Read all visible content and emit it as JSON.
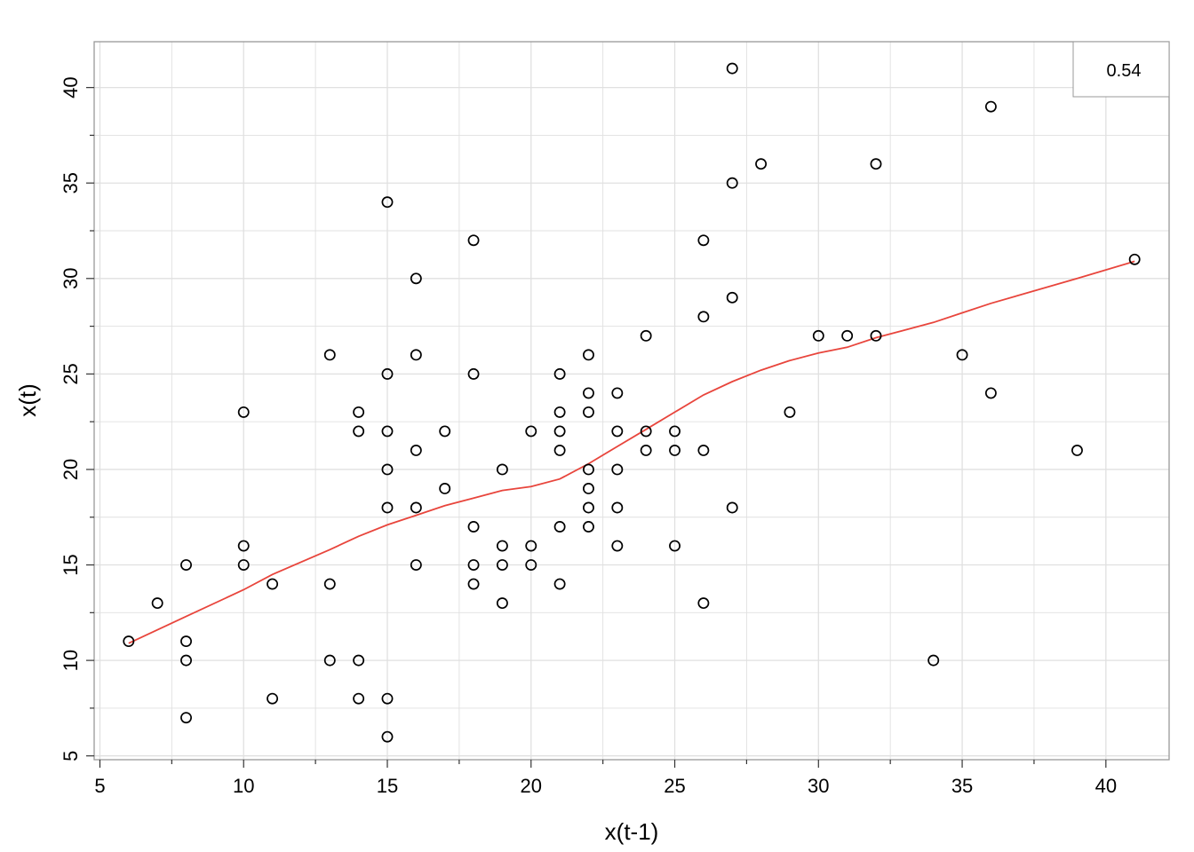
{
  "chart_data": {
    "type": "scatter",
    "xlabel": "x(t-1)",
    "ylabel": "x(t)",
    "xlim": [
      4.8,
      42.2
    ],
    "ylim": [
      4.8,
      42.4
    ],
    "xticks": [
      5,
      10,
      15,
      20,
      25,
      30,
      35,
      40
    ],
    "yticks": [
      5,
      10,
      15,
      20,
      25,
      30,
      35,
      40
    ],
    "grid": true,
    "legend": {
      "text": "0.54",
      "placement": "top-right"
    },
    "colors": {
      "points": "#000000",
      "smooth": "#e8453c",
      "grid": "#e0e0e0",
      "frame": "#999999"
    },
    "points": [
      [
        6,
        11
      ],
      [
        7,
        13
      ],
      [
        8,
        15
      ],
      [
        8,
        11
      ],
      [
        8,
        10
      ],
      [
        8,
        7
      ],
      [
        10,
        23
      ],
      [
        10,
        16
      ],
      [
        10,
        15
      ],
      [
        11,
        14
      ],
      [
        11,
        8
      ],
      [
        13,
        26
      ],
      [
        13,
        14
      ],
      [
        13,
        10
      ],
      [
        14,
        23
      ],
      [
        14,
        22
      ],
      [
        14,
        10
      ],
      [
        14,
        8
      ],
      [
        15,
        34
      ],
      [
        15,
        25
      ],
      [
        15,
        22
      ],
      [
        15,
        20
      ],
      [
        15,
        18
      ],
      [
        15,
        8
      ],
      [
        15,
        6
      ],
      [
        16,
        30
      ],
      [
        16,
        26
      ],
      [
        16,
        21
      ],
      [
        16,
        18
      ],
      [
        16,
        15
      ],
      [
        17,
        22
      ],
      [
        17,
        19
      ],
      [
        18,
        32
      ],
      [
        18,
        25
      ],
      [
        18,
        17
      ],
      [
        18,
        15
      ],
      [
        18,
        14
      ],
      [
        19,
        20
      ],
      [
        19,
        16
      ],
      [
        19,
        15
      ],
      [
        19,
        13
      ],
      [
        20,
        22
      ],
      [
        20,
        16
      ],
      [
        20,
        15
      ],
      [
        21,
        25
      ],
      [
        21,
        23
      ],
      [
        21,
        22
      ],
      [
        21,
        21
      ],
      [
        21,
        17
      ],
      [
        21,
        14
      ],
      [
        22,
        26
      ],
      [
        22,
        24
      ],
      [
        22,
        23
      ],
      [
        22,
        20
      ],
      [
        22,
        19
      ],
      [
        22,
        18
      ],
      [
        22,
        17
      ],
      [
        23,
        24
      ],
      [
        23,
        22
      ],
      [
        23,
        20
      ],
      [
        23,
        18
      ],
      [
        23,
        16
      ],
      [
        24,
        27
      ],
      [
        24,
        22
      ],
      [
        24,
        21
      ],
      [
        25,
        22
      ],
      [
        25,
        21
      ],
      [
        25,
        16
      ],
      [
        26,
        32
      ],
      [
        26,
        28
      ],
      [
        26,
        21
      ],
      [
        26,
        13
      ],
      [
        27,
        41
      ],
      [
        27,
        35
      ],
      [
        27,
        29
      ],
      [
        27,
        18
      ],
      [
        28,
        36
      ],
      [
        29,
        23
      ],
      [
        30,
        27
      ],
      [
        31,
        27
      ],
      [
        32,
        36
      ],
      [
        32,
        27
      ],
      [
        34,
        10
      ],
      [
        35,
        26
      ],
      [
        36,
        39
      ],
      [
        36,
        24
      ],
      [
        39,
        21
      ],
      [
        41,
        31
      ]
    ],
    "smooth_line": [
      [
        6,
        10.9
      ],
      [
        8,
        12.3
      ],
      [
        10,
        13.7
      ],
      [
        11,
        14.5
      ],
      [
        13,
        15.8
      ],
      [
        14,
        16.5
      ],
      [
        15,
        17.1
      ],
      [
        16,
        17.6
      ],
      [
        17,
        18.1
      ],
      [
        18,
        18.5
      ],
      [
        19,
        18.9
      ],
      [
        20,
        19.1
      ],
      [
        21,
        19.5
      ],
      [
        22,
        20.3
      ],
      [
        23,
        21.2
      ],
      [
        24,
        22.1
      ],
      [
        25,
        23.0
      ],
      [
        26,
        23.9
      ],
      [
        27,
        24.6
      ],
      [
        28,
        25.2
      ],
      [
        29,
        25.7
      ],
      [
        30,
        26.1
      ],
      [
        31,
        26.4
      ],
      [
        32,
        26.9
      ],
      [
        34,
        27.7
      ],
      [
        35,
        28.2
      ],
      [
        36,
        28.7
      ],
      [
        39,
        30.0
      ],
      [
        41,
        30.9
      ]
    ]
  }
}
